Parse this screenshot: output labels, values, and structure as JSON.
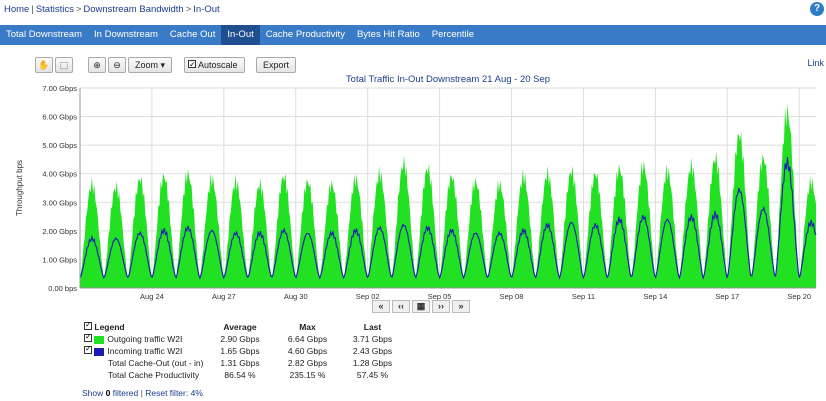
{
  "breadcrumb": {
    "home": "Home",
    "statistics": "Statistics",
    "downstream": "Downstream Bandwidth",
    "current": "In-Out"
  },
  "tabs": [
    "Total Downstream",
    "In Downstream",
    "Cache Out",
    "In-Out",
    "Cache Productivity",
    "Bytes Hit Ratio",
    "Percentile"
  ],
  "active_tab": 3,
  "toolbar": {
    "zoom_label": "Zoom ▾",
    "autoscale_label": "Autoscale",
    "export_label": "Export"
  },
  "link_label": "Link",
  "chart_data": {
    "type": "area",
    "title": "Total Traffic In-Out Downstream 21 Aug - 20 Sep",
    "ylabel": "Throughput bps",
    "ylim": [
      0,
      7
    ],
    "yticks": [
      "0.00  bps",
      "1.00 Gbps",
      "2.00 Gbps",
      "3.00 Gbps",
      "4.00 Gbps",
      "5.00 Gbps",
      "6.00 Gbps",
      "7.00 Gbps"
    ],
    "xticks": [
      "Aug 24",
      "Aug 27",
      "Aug 30",
      "Sep 02",
      "Sep 05",
      "Sep 08",
      "Sep 11",
      "Sep 14",
      "Sep 17",
      "Sep 20"
    ],
    "xtick_days": [
      3,
      6,
      9,
      12,
      15,
      18,
      21,
      24,
      27,
      30
    ],
    "days": 30.7,
    "grid": true,
    "daily_peak_outgoing": [
      3.9,
      3.8,
      4.1,
      4.2,
      4.3,
      4.1,
      4.0,
      3.9,
      4.2,
      4.0,
      3.9,
      4.1,
      4.3,
      4.7,
      4.5,
      4.2,
      4.0,
      3.9,
      4.2,
      4.3,
      4.4,
      4.3,
      4.5,
      4.6,
      4.4,
      4.6,
      4.9,
      5.8,
      4.9,
      6.64,
      4.0
    ],
    "daily_peak_incoming": [
      1.8,
      1.8,
      2.0,
      2.1,
      2.2,
      2.1,
      2.0,
      2.0,
      2.1,
      2.0,
      2.0,
      2.1,
      2.2,
      2.3,
      2.2,
      2.1,
      2.0,
      2.0,
      2.1,
      2.3,
      2.4,
      2.3,
      2.5,
      2.6,
      2.5,
      2.6,
      2.7,
      3.6,
      2.9,
      4.6,
      2.4
    ],
    "daily_min": 0.35,
    "series": [
      {
        "name": "Outgoing traffic W2I",
        "color": "#22e022",
        "average": "2.90 Gbps",
        "max": "6.64 Gbps",
        "last": "3.71 Gbps"
      },
      {
        "name": "Incoming traffic W2I",
        "color": "#1a1ab8",
        "average": "1.65 Gbps",
        "max": "4.60 Gbps",
        "last": "2.43 Gbps"
      }
    ]
  },
  "legend": {
    "headers": {
      "legend": "Legend",
      "average": "Average",
      "max": "Max",
      "last": "Last"
    },
    "extra_rows": [
      {
        "name": "Total Cache-Out (out - in)",
        "average": "1.31 Gbps",
        "max": "2.82 Gbps",
        "last": "1.28 Gbps"
      },
      {
        "name": "Total Cache Productivity",
        "average": "86.54  %",
        "max": "235.15  %",
        "last": "57.45  %"
      }
    ]
  },
  "footer": {
    "show": "Show",
    "count": "0",
    "filtered": "filtered",
    "sep": "|",
    "reset": "Reset filter: 4%"
  }
}
